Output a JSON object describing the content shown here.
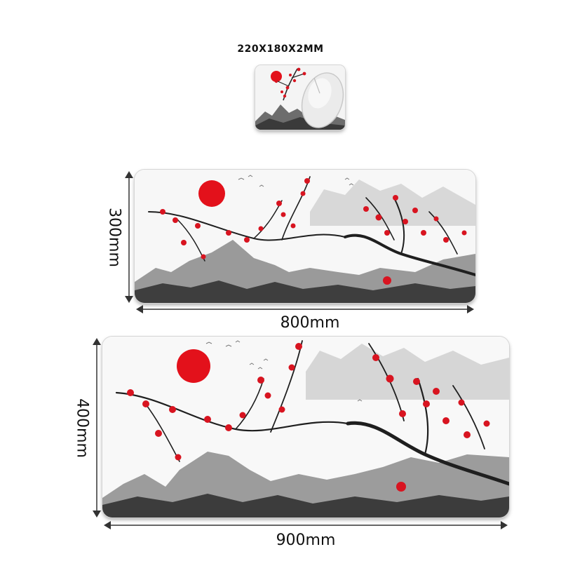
{
  "small_pad": {
    "size_label": "220X180X2MM"
  },
  "medium_pad": {
    "width_label": "800mm",
    "height_label": "300mm"
  },
  "large_pad": {
    "width_label": "900mm",
    "height_label": "400mm"
  },
  "colors": {
    "sun": "#e3111b",
    "blossom": "#d81420",
    "ink": "#2a2a2a",
    "mist": "#d9d9d9"
  }
}
